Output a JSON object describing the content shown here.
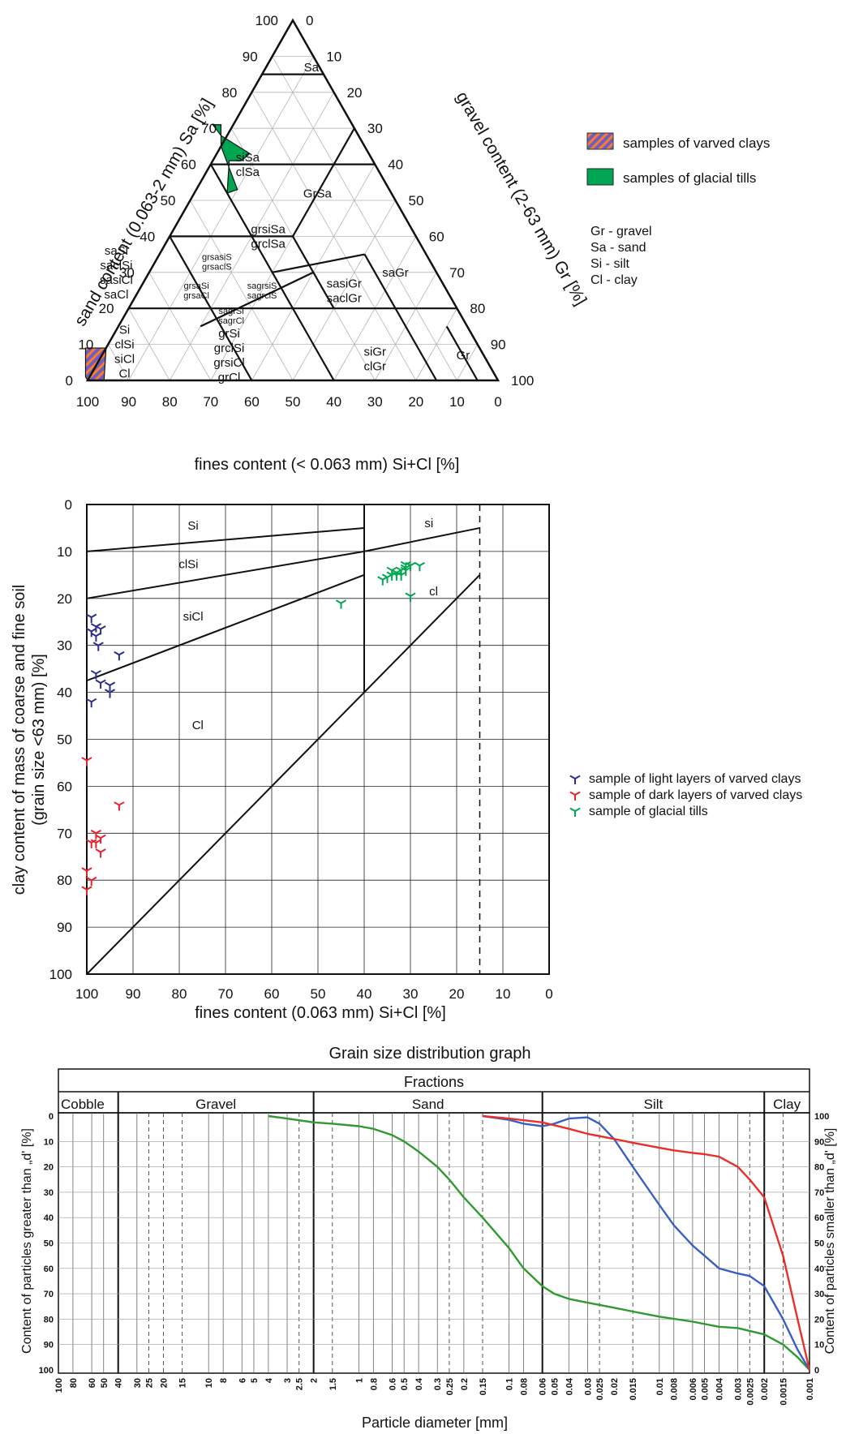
{
  "chart_data": [
    {
      "type": "ternary",
      "axes": {
        "left": {
          "label": "sand content (0.063-2 mm) Sa [%]",
          "ticks": [
            "0",
            "10",
            "20",
            "30",
            "40",
            "50",
            "60",
            "70",
            "80",
            "90",
            "100"
          ]
        },
        "right": {
          "label": "gravel content (2-63 mm) Gr [%]",
          "ticks": [
            "0",
            "10",
            "20",
            "30",
            "40",
            "50",
            "60",
            "70",
            "80",
            "90",
            "100"
          ]
        },
        "bottom": {
          "label": "fines content (< 0.063 mm) Si+Cl [%]",
          "ticks": [
            "100",
            "90",
            "80",
            "70",
            "60",
            "50",
            "40",
            "30",
            "20",
            "10",
            "0"
          ]
        }
      },
      "regions": [
        {
          "lines": [
            "Sa"
          ],
          "fines": 2,
          "sand": 87
        },
        {
          "lines": [
            "siSa",
            "clSa"
          ],
          "fines": 31,
          "sand": 60
        },
        {
          "lines": [
            "GrSa"
          ],
          "fines": 18,
          "sand": 52
        },
        {
          "lines": [
            "grsiSa",
            "grclSa"
          ],
          "fines": 36,
          "sand": 40
        },
        {
          "lines": [
            "saSi",
            "saclSi",
            "sasiCl",
            "saCl"
          ],
          "fines": 78,
          "sand": 30
        },
        {
          "lines": [
            "grsasiS",
            "grsaclS"
          ],
          "fines": 52,
          "sand": 33
        },
        {
          "lines": [
            "grsaSi",
            "grsaCl"
          ],
          "fines": 61,
          "sand": 25
        },
        {
          "lines": [
            "sagrsiS",
            "sagrclS"
          ],
          "fines": 45,
          "sand": 25
        },
        {
          "lines": [
            "sagrSi",
            "sagrCl"
          ],
          "fines": 56,
          "sand": 18
        },
        {
          "lines": [
            "sasiGr",
            "saclGr"
          ],
          "fines": 25,
          "sand": 25
        },
        {
          "lines": [
            "saGr"
          ],
          "fines": 10,
          "sand": 30
        },
        {
          "lines": [
            "Si",
            "clSi",
            "siCl",
            "Cl"
          ],
          "fines": 87,
          "sand": 8
        },
        {
          "lines": [
            "grSi",
            "grclSi",
            "grsiCl",
            "grCl"
          ],
          "fines": 62,
          "sand": 7
        },
        {
          "lines": [
            "siGr",
            "clGr"
          ],
          "fines": 27,
          "sand": 6
        },
        {
          "lines": [
            "Gr"
          ],
          "fines": 5,
          "sand": 7
        }
      ],
      "samples": [
        {
          "name": "samples of varved clays",
          "color": "#6b5fc4",
          "stripe": "#ff7a2a",
          "polygon": [
            [
              100,
              0
            ],
            [
              96,
              0
            ],
            [
              91,
              9
            ],
            [
              96,
              9
            ],
            [
              100,
              1
            ]
          ]
        },
        {
          "name": "samples of glacial tills",
          "color": "#00a651",
          "polygon": [
            [
              35,
              65
            ],
            [
              32,
              71
            ],
            [
              34,
              71
            ],
            [
              33.5,
              68
            ],
            [
              29,
              63
            ],
            [
              32,
              61
            ],
            [
              35,
              61
            ],
            [
              40,
              52
            ],
            [
              37,
              53
            ]
          ]
        }
      ],
      "legend": [
        "samples of varved clays",
        "samples of glacial tills"
      ],
      "abbreviations": [
        "Gr - gravel",
        "Sa - sand",
        "Si - silt",
        "Cl - clay"
      ]
    },
    {
      "type": "scatter",
      "xlabel": "fines content (0.063 mm) Si+Cl [%]",
      "ylabel_lines": [
        "clay content of mass of coarse and fine soil",
        "(grain size <63 mm) [%]"
      ],
      "xlim": [
        100,
        0
      ],
      "ylim": [
        0,
        100
      ],
      "xticks": [
        "100",
        "90",
        "80",
        "70",
        "60",
        "50",
        "40",
        "30",
        "20",
        "10",
        "0"
      ],
      "yticks": [
        "0",
        "10",
        "20",
        "30",
        "40",
        "50",
        "60",
        "70",
        "80",
        "90",
        "100"
      ],
      "regions": [
        {
          "label": "Si",
          "x": 77,
          "y": 4.5
        },
        {
          "label": "clSi",
          "x": 78,
          "y": 12.7
        },
        {
          "label": "siCl",
          "x": 77,
          "y": 23.8
        },
        {
          "label": "Cl",
          "x": 76,
          "y": 47
        },
        {
          "label": "si",
          "x": 26,
          "y": 4
        },
        {
          "label": "cl",
          "x": 25,
          "y": 18.5
        }
      ],
      "series": [
        {
          "name": "sample of light layers of varved clays",
          "color": "#2b2d8a",
          "points": [
            [
              99,
              24
            ],
            [
              98,
              26
            ],
            [
              97,
              26.5
            ],
            [
              99,
              27
            ],
            [
              98,
              28
            ],
            [
              97.5,
              30
            ],
            [
              93,
              32
            ],
            [
              98,
              36
            ],
            [
              97,
              38
            ],
            [
              95,
              38.5
            ],
            [
              95,
              40
            ],
            [
              99,
              42
            ]
          ]
        },
        {
          "name": "sample of dark layers of varved clays",
          "color": "#e8202a",
          "points": [
            [
              100,
              54.5
            ],
            [
              93,
              64
            ],
            [
              98,
              70
            ],
            [
              97,
              71
            ],
            [
              98,
              72
            ],
            [
              99,
              72
            ],
            [
              97,
              74
            ],
            [
              100,
              78
            ],
            [
              99,
              80
            ],
            [
              100,
              82
            ]
          ]
        },
        {
          "name": "sample of glacial tills",
          "color": "#00a651",
          "points": [
            [
              45,
              21
            ],
            [
              36,
              16
            ],
            [
              35,
              15.5
            ],
            [
              34,
              15
            ],
            [
              33,
              14.5
            ],
            [
              32,
              14
            ],
            [
              31,
              14
            ],
            [
              32,
              15
            ],
            [
              33,
              15
            ],
            [
              34,
              14
            ],
            [
              31,
              13.5
            ],
            [
              30,
              13
            ],
            [
              31,
              12.8
            ],
            [
              28,
              13
            ],
            [
              30,
              19.5
            ]
          ]
        }
      ]
    },
    {
      "type": "line",
      "title": "Grain size distribution graph",
      "header": "Fractions",
      "fractions": [
        "Cobble",
        "Gravel",
        "Sand",
        "Silt",
        "Clay"
      ],
      "ylabel_left": "Content of particles greater than „d' [%]",
      "ylabel_right": "Content of particles smaller than „d' [%]",
      "xlabel": "Particle diameter [mm]",
      "x_scale": "log",
      "xlim": [
        100,
        0.001
      ],
      "xtick_labels": [
        "100",
        "80",
        "60",
        "50",
        "40",
        "30",
        "25",
        "20",
        "15",
        "10",
        "8",
        "6",
        "5",
        "4",
        "3",
        "2.5",
        "2",
        "1.5",
        "1",
        "0.8",
        "0.6",
        "0.5",
        "0.4",
        "0.3",
        "0.25",
        "0.2",
        "0.15",
        "0.1",
        "0.08",
        "0.06",
        "0.05",
        "0.04",
        "0.03",
        "0.025",
        "0.02",
        "0.015",
        "0.01",
        "0.008",
        "0.006",
        "0.005",
        "0.004",
        "0.003",
        "0.0025",
        "0.002",
        "0.0015",
        "0.001"
      ],
      "yticks_left": [
        "0",
        "10",
        "20",
        "30",
        "40",
        "50",
        "60",
        "70",
        "80",
        "90",
        "100"
      ],
      "yticks_right": [
        "100",
        "90",
        "80",
        "70",
        "60",
        "50",
        "40",
        "30",
        "20",
        "10",
        "0"
      ],
      "series": [
        {
          "name": "",
          "color": "#2f9a2f",
          "x": [
            4,
            3,
            2,
            1.5,
            1,
            0.8,
            0.6,
            0.5,
            0.4,
            0.3,
            0.25,
            0.2,
            0.15,
            0.1,
            0.08,
            0.06,
            0.05,
            0.04,
            0.03,
            0.02,
            0.015,
            0.01,
            0.006,
            0.004,
            0.003,
            0.002,
            0.0015,
            0.0012,
            0.001
          ],
          "y": [
            0,
            1,
            2.5,
            3,
            4,
            5,
            7.5,
            10,
            14,
            20,
            25,
            32,
            40,
            52,
            60,
            67,
            70,
            72,
            73.5,
            75.5,
            77,
            79,
            81,
            83,
            83.5,
            86,
            90,
            95,
            100
          ]
        },
        {
          "name": "",
          "color": "#3a5fc4",
          "x": [
            0.15,
            0.1,
            0.08,
            0.06,
            0.05,
            0.04,
            0.03,
            0.025,
            0.02,
            0.015,
            0.01,
            0.008,
            0.006,
            0.005,
            0.004,
            0.003,
            0.0025,
            0.002,
            0.0015,
            0.0012,
            0.001
          ],
          "y": [
            0,
            1.5,
            3,
            4,
            3,
            1,
            0.5,
            3,
            9,
            20,
            35,
            43,
            51,
            55,
            60,
            62,
            63,
            67,
            80,
            92,
            100
          ]
        },
        {
          "name": "",
          "color": "#e8302a",
          "x": [
            0.15,
            0.1,
            0.06,
            0.04,
            0.03,
            0.02,
            0.015,
            0.01,
            0.008,
            0.006,
            0.005,
            0.004,
            0.003,
            0.0025,
            0.002,
            0.0015,
            0.0012,
            0.001
          ],
          "y": [
            0,
            1,
            2.5,
            5,
            7,
            9,
            10.5,
            12.5,
            13.5,
            14.5,
            15,
            16,
            20,
            25,
            32,
            55,
            80,
            100
          ]
        }
      ]
    }
  ]
}
